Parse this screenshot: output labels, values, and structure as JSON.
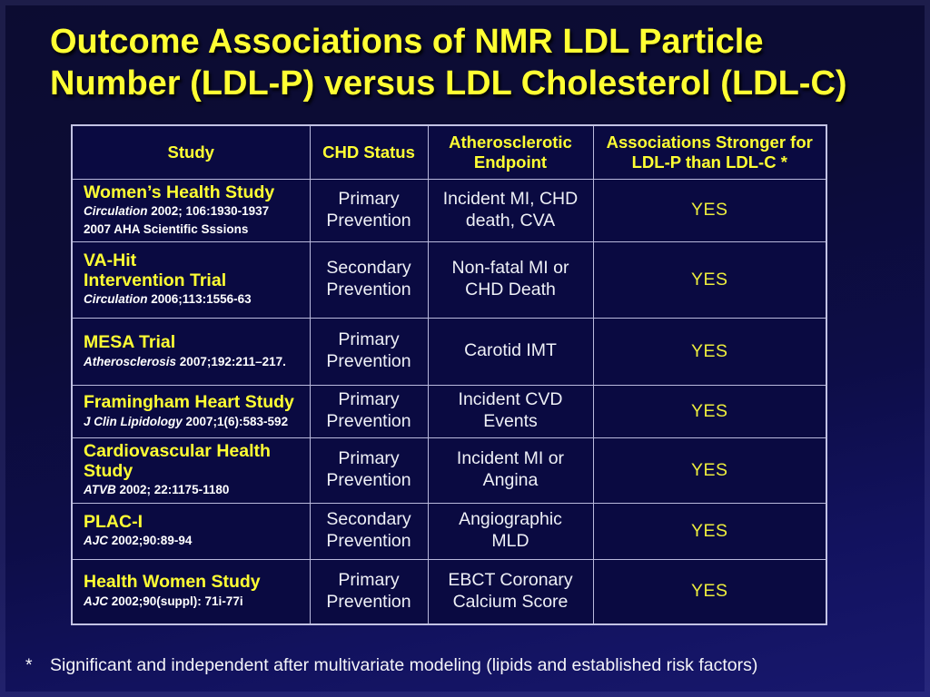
{
  "slide": {
    "title": "Outcome Associations of NMR LDL Particle\nNumber (LDL-P) versus LDL Cholesterol (LDL-C)",
    "footnote_marker": "*",
    "footnote_text": "Significant and independent after multivariate modeling (lipids and established risk factors)"
  },
  "table": {
    "headers": [
      "Study",
      "CHD Status",
      "Atherosclerotic\nEndpoint",
      "Associations Stronger for\nLDL-P than LDL-C *"
    ],
    "rows": [
      {
        "study": "Women’s Health Study",
        "citations": [
          {
            "journal": "Circulation",
            "text": " 2002; 106:1930-1937"
          },
          {
            "journal": "",
            "text": "2007 AHA Scientific Sssions"
          }
        ],
        "chd_status": "Primary\nPrevention",
        "endpoint": "Incident MI, CHD\ndeath, CVA",
        "assoc": "YES"
      },
      {
        "study": "VA-Hit\nIntervention Trial",
        "citations": [
          {
            "journal": "Circulation",
            "text": " 2006;113:1556-63"
          }
        ],
        "chd_status": "Secondary\nPrevention",
        "endpoint": "Non-fatal MI or\nCHD Death",
        "assoc": "YES"
      },
      {
        "study": "MESA Trial",
        "citations": [
          {
            "journal": "Atherosclerosis",
            "text": " 2007;192:211–217."
          }
        ],
        "chd_status": "Primary\nPrevention",
        "endpoint": "Carotid IMT",
        "assoc": "YES"
      },
      {
        "study": "Framingham Heart Study",
        "citations": [
          {
            "journal": "J Clin Lipidology",
            "text": " 2007;1(6):583-592"
          }
        ],
        "chd_status": "Primary\nPrevention",
        "endpoint": "Incident CVD\nEvents",
        "assoc": "YES"
      },
      {
        "study": "Cardiovascular Health\nStudy",
        "citations": [
          {
            "journal": "ATVB",
            "text": " 2002; 22:1175-1180"
          }
        ],
        "chd_status": "Primary\nPrevention",
        "endpoint": "Incident MI or\nAngina",
        "assoc": "YES"
      },
      {
        "study": "PLAC-I",
        "citations": [
          {
            "journal": "AJC",
            "text": " 2002;90:89-94"
          }
        ],
        "chd_status": "Secondary\nPrevention",
        "endpoint": "Angiographic\nMLD",
        "assoc": "YES"
      },
      {
        "study": "Health Women Study",
        "citations": [
          {
            "journal": "AJC",
            "text": " 2002;90(suppl): 71i-77i"
          }
        ],
        "chd_status": "Primary\nPrevention",
        "endpoint": "EBCT Coronary\nCalcium Score",
        "assoc": "YES"
      }
    ]
  },
  "colors": {
    "accent_yellow": "#ffff33",
    "body_text": "#eef0f6",
    "cell_background": "#0a0a41",
    "table_border": "#b9b9dc",
    "background_top": "#0c0c31",
    "background_bottom": "#18186e"
  }
}
